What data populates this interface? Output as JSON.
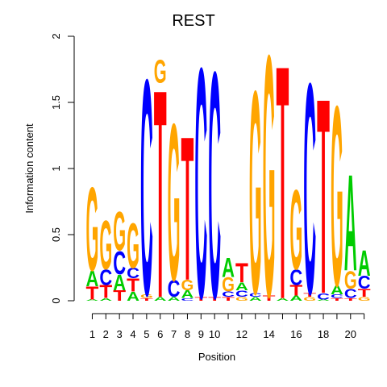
{
  "chart_data": {
    "type": "sequence-logo",
    "title": "REST",
    "xlabel": "Position",
    "ylabel": "Information content",
    "ylim": [
      0,
      2
    ],
    "y_ticks": [
      "0",
      "0.5",
      "1",
      "1.5",
      "2"
    ],
    "x_tick_labels": [
      "1",
      "2",
      "3",
      "4",
      "5",
      "6",
      "7",
      "8",
      "9",
      "10",
      "12",
      "14",
      "16",
      "18",
      "20"
    ],
    "positions": [
      {
        "pos": 1,
        "letters": [
          {
            "base": "A",
            "height": 0.01
          },
          {
            "base": "T",
            "height": 0.1
          },
          {
            "base": "A",
            "height": 0.12
          },
          {
            "base": "G",
            "height": 0.65
          }
        ]
      },
      {
        "pos": 2,
        "letters": [
          {
            "base": "A",
            "height": 0.02
          },
          {
            "base": "T",
            "height": 0.1
          },
          {
            "base": "C",
            "height": 0.12
          },
          {
            "base": "G",
            "height": 0.38
          }
        ]
      },
      {
        "pos": 3,
        "letters": [
          {
            "base": "T",
            "height": 0.08
          },
          {
            "base": "A",
            "height": 0.12
          },
          {
            "base": "C",
            "height": 0.18
          },
          {
            "base": "G",
            "height": 0.3
          }
        ]
      },
      {
        "pos": 4,
        "letters": [
          {
            "base": "A",
            "height": 0.07
          },
          {
            "base": "T",
            "height": 0.1
          },
          {
            "base": "C",
            "height": 0.08
          },
          {
            "base": "G",
            "height": 0.35
          }
        ]
      },
      {
        "pos": 5,
        "letters": [
          {
            "base": "T",
            "height": 0.02
          },
          {
            "base": "G",
            "height": 0.03
          },
          {
            "base": "C",
            "height": 1.68
          }
        ]
      },
      {
        "pos": 6,
        "letters": [
          {
            "base": "A",
            "height": 0.03
          },
          {
            "base": "T",
            "height": 1.62
          },
          {
            "base": "G",
            "height": 0.18
          }
        ]
      },
      {
        "pos": 7,
        "letters": [
          {
            "base": "A",
            "height": 0.03
          },
          {
            "base": "C",
            "height": 0.13
          },
          {
            "base": "G",
            "height": 1.22
          }
        ]
      },
      {
        "pos": 8,
        "letters": [
          {
            "base": "C",
            "height": 0.02
          },
          {
            "base": "A",
            "height": 0.06
          },
          {
            "base": "G",
            "height": 0.08
          },
          {
            "base": "T",
            "height": 1.12
          }
        ]
      },
      {
        "pos": 9,
        "letters": [
          {
            "base": "T",
            "height": 0.03
          },
          {
            "base": "C",
            "height": 1.79
          }
        ]
      },
      {
        "pos": 10,
        "letters": [
          {
            "base": "T",
            "height": 0.03
          },
          {
            "base": "C",
            "height": 1.76
          }
        ]
      },
      {
        "pos": 11,
        "letters": [
          {
            "base": "T",
            "height": 0.03
          },
          {
            "base": "C",
            "height": 0.04
          },
          {
            "base": "G",
            "height": 0.11
          },
          {
            "base": "A",
            "height": 0.15
          }
        ]
      },
      {
        "pos": 12,
        "letters": [
          {
            "base": "G",
            "height": 0.03
          },
          {
            "base": "C",
            "height": 0.05
          },
          {
            "base": "A",
            "height": 0.06
          },
          {
            "base": "T",
            "height": 0.15
          }
        ]
      },
      {
        "pos": 13,
        "letters": [
          {
            "base": "A",
            "height": 0.03
          },
          {
            "base": "C",
            "height": 0.03
          },
          {
            "base": "G",
            "height": 1.58
          }
        ]
      },
      {
        "pos": 14,
        "letters": [
          {
            "base": "T",
            "height": 0.04
          },
          {
            "base": "G",
            "height": 1.88
          }
        ]
      },
      {
        "pos": 15,
        "letters": [
          {
            "base": "A",
            "height": 0.02
          },
          {
            "base": "T",
            "height": 1.82
          }
        ]
      },
      {
        "pos": 16,
        "letters": [
          {
            "base": "A",
            "height": 0.04
          },
          {
            "base": "T",
            "height": 0.08
          },
          {
            "base": "C",
            "height": 0.12
          },
          {
            "base": "G",
            "height": 0.62
          }
        ]
      },
      {
        "pos": 17,
        "letters": [
          {
            "base": "G",
            "height": 0.03
          },
          {
            "base": "T",
            "height": 0.03
          },
          {
            "base": "C",
            "height": 1.64
          }
        ]
      },
      {
        "pos": 18,
        "letters": [
          {
            "base": "A",
            "height": 0.01
          },
          {
            "base": "C",
            "height": 0.05
          },
          {
            "base": "T",
            "height": 1.52
          }
        ]
      },
      {
        "pos": 19,
        "letters": [
          {
            "base": "T",
            "height": 0.02
          },
          {
            "base": "C",
            "height": 0.03
          },
          {
            "base": "A",
            "height": 0.07
          },
          {
            "base": "G",
            "height": 1.4
          }
        ]
      },
      {
        "pos": 20,
        "letters": [
          {
            "base": "T",
            "height": 0.02
          },
          {
            "base": "C",
            "height": 0.07
          },
          {
            "base": "G",
            "height": 0.14
          },
          {
            "base": "A",
            "height": 0.75
          }
        ]
      },
      {
        "pos": 21,
        "letters": [
          {
            "base": "G",
            "height": 0.03
          },
          {
            "base": "T",
            "height": 0.06
          },
          {
            "base": "C",
            "height": 0.1
          },
          {
            "base": "A",
            "height": 0.2
          }
        ]
      }
    ],
    "colors": {
      "A": "#00cc00",
      "C": "#0000ff",
      "G": "#ffa500",
      "T": "#ff0000"
    }
  }
}
